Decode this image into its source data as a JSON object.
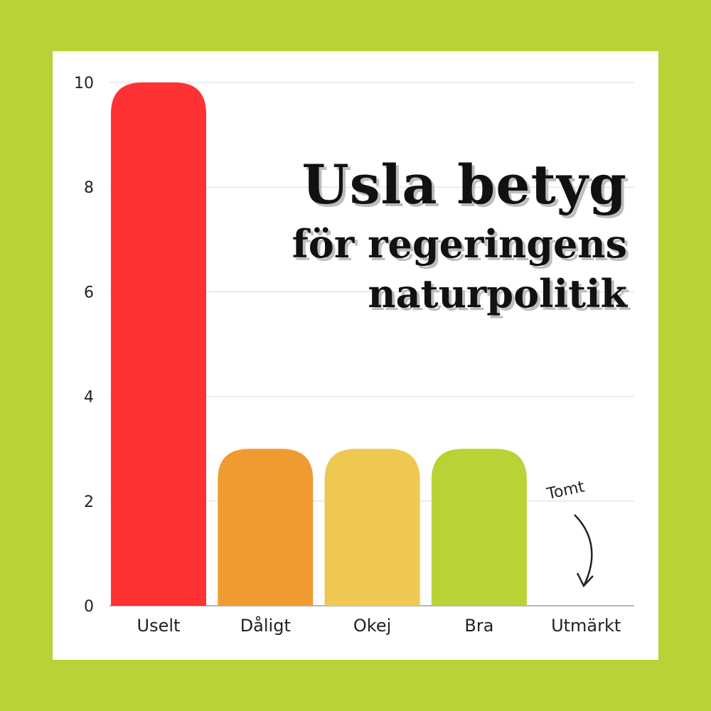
{
  "chart_data": {
    "type": "bar",
    "title": "Usla betyg",
    "subtitle_lines": [
      "för regeringens",
      "naturpolitik"
    ],
    "categories": [
      "Uselt",
      "Dåligt",
      "Okej",
      "Bra",
      "Utmärkt"
    ],
    "values": [
      10,
      3,
      3,
      3,
      0
    ],
    "colors": [
      "#fe3232",
      "#ef9b32",
      "#efc852",
      "#b8d335",
      "#ffffff"
    ],
    "ylim": [
      0,
      10
    ],
    "yticks": [
      0,
      2,
      4,
      6,
      8,
      10
    ],
    "grid": true,
    "annotation": {
      "text": "Tomt",
      "category": "Utmärkt"
    }
  },
  "colors": {
    "background": "#b8d335",
    "card": "#ffffff"
  }
}
